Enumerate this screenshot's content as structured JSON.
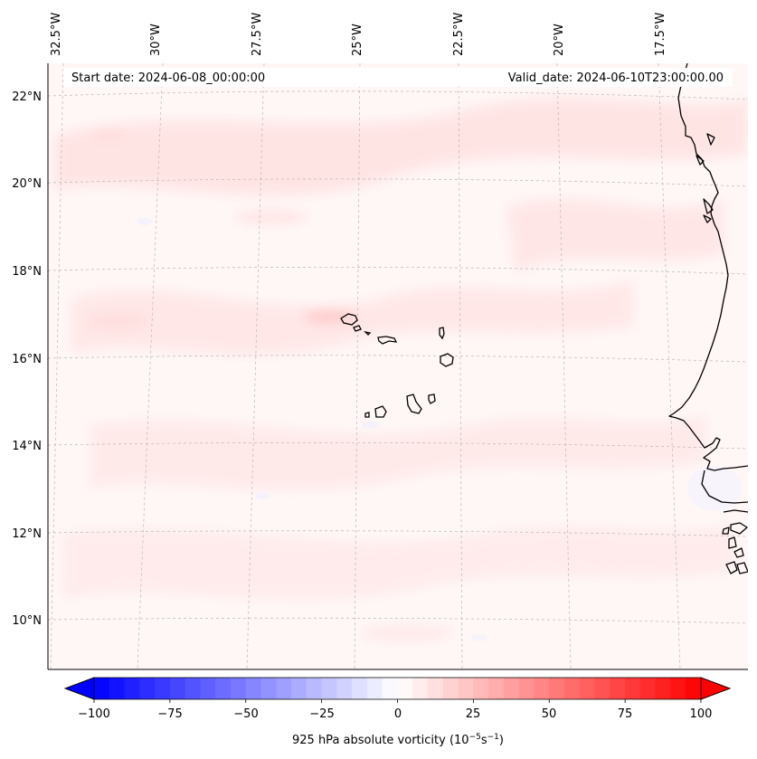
{
  "map": {
    "header": {
      "start_date": "Start date: 2024-06-08_00:00:00",
      "valid_date": "Valid_date: 2024-06-10T23:00:00.00"
    },
    "longitude_labels": [
      "32.5°W",
      "30°W",
      "27.5°W",
      "25°W",
      "22.5°W",
      "20°W",
      "17.5°W"
    ],
    "latitude_labels": [
      "22°N",
      "20°N",
      "18°N",
      "16°N",
      "14°N",
      "12°N",
      "10°N"
    ],
    "colorbar": {
      "ticks": [
        "−100",
        "−75",
        "−50",
        "−25",
        "0",
        "25",
        "50",
        "75",
        "100"
      ],
      "label": "925 hPa absolute vorticity (10",
      "label_exp1": "−5",
      "label_mid": "s",
      "label_exp2": "−1",
      "label_end": ")"
    }
  }
}
